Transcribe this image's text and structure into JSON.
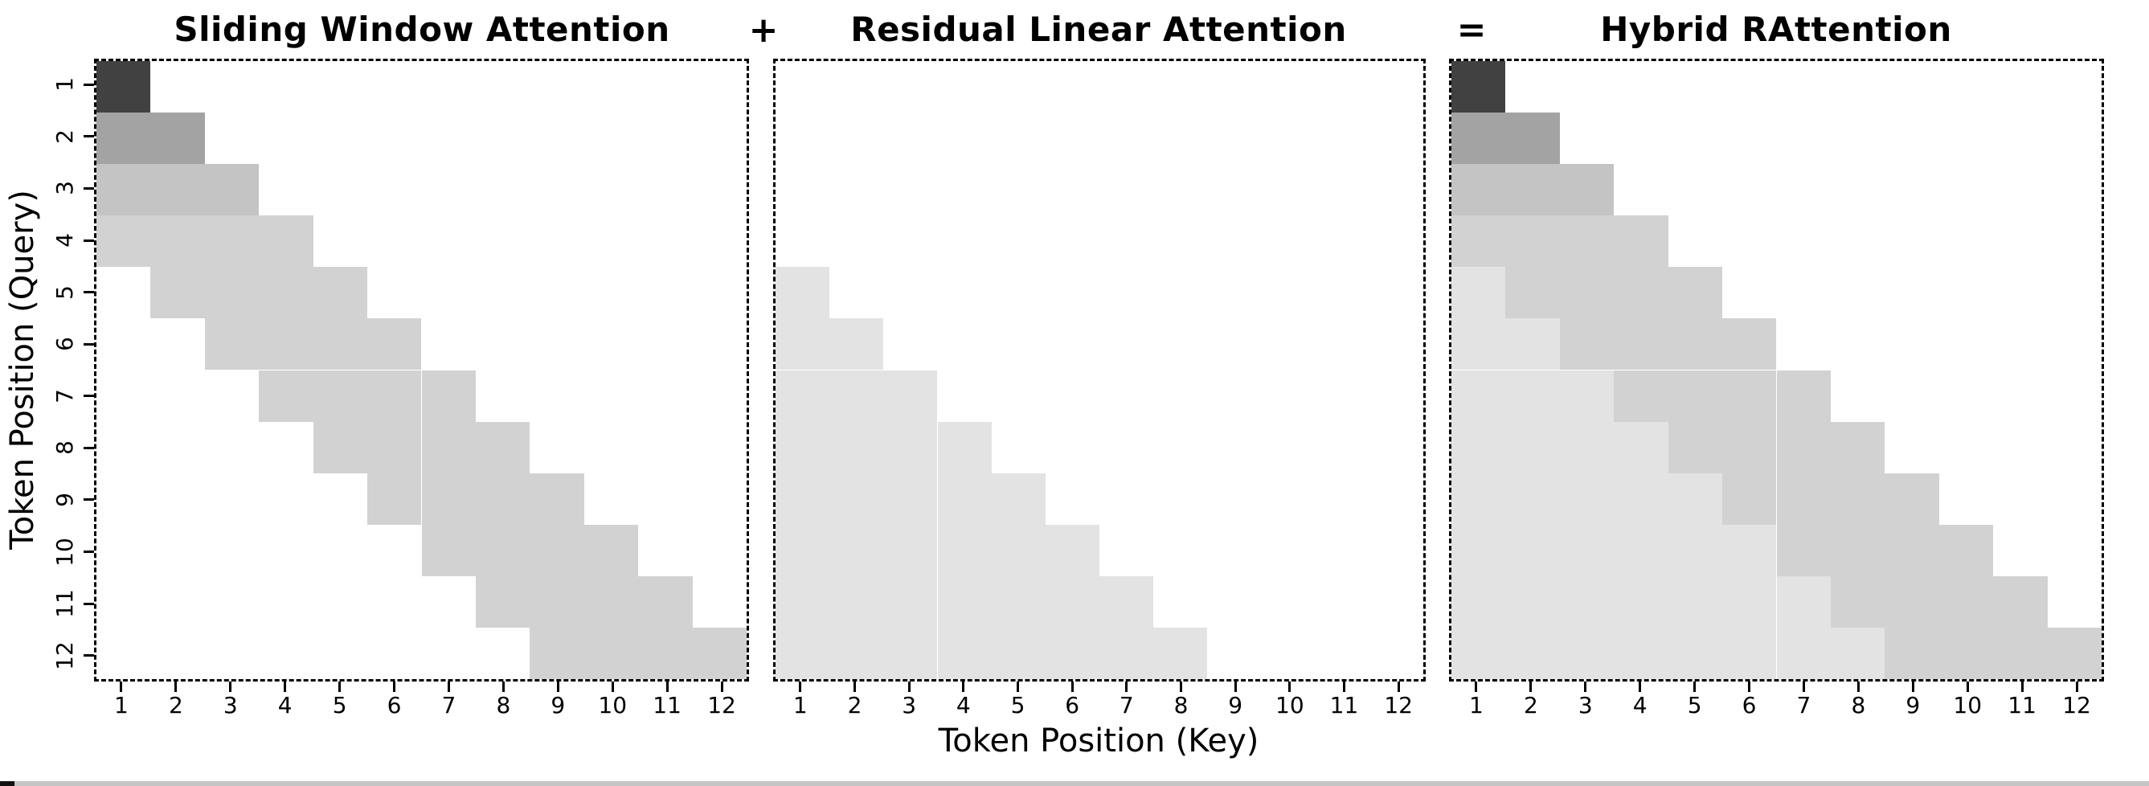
{
  "figure": {
    "titles": [
      {
        "text": "Sliding Window Attention"
      },
      {
        "text": "+"
      },
      {
        "text": "Residual Linear Attention"
      },
      {
        "text": "="
      },
      {
        "text": "Hybrid RAttention"
      }
    ],
    "xlabel": "Token Position (Key)",
    "ylabel": "Token Position (Query)"
  },
  "chart_data": {
    "type": "heatmap",
    "subplot_count": 3,
    "x_ticks": [
      1,
      2,
      3,
      4,
      5,
      6,
      7,
      8,
      9,
      10,
      11,
      12
    ],
    "y_ticks": [
      1,
      2,
      3,
      4,
      5,
      6,
      7,
      8,
      9,
      10,
      11,
      12
    ],
    "axis_style": "dashed black frame, ticks outside, y tick labels rotated 90",
    "palette": {
      "a": "#414141",
      "b": "#a3a3a3",
      "c": "#c4c4c4",
      "d": "#d2d2d2",
      "e": "#e3e3e3"
    },
    "palette_meaning": {
      "a": "attended cell, darkest (query 1, single key)",
      "b": "attended cell, dark-medium (query 2 rows)",
      "c": "attended cell, medium (query 3 rows)",
      "d": "attended cell, light (sliding-window band, window size 4)",
      "e": "attended cell, lightest (residual linear / prefix part)",
      ".": "not attended (white)"
    },
    "panels": [
      {
        "title": "Sliding Window Attention",
        "pattern": "causal sliding window, window size 4",
        "grid": [
          "a...........",
          "bb..........",
          "ccc.........",
          "dddd........",
          ".dddd.......",
          "..dddd......",
          "...dddd.....",
          "....dddd....",
          ".....dddd...",
          "......dddd..",
          ".......dddd.",
          "........dddd"
        ]
      },
      {
        "title": "Residual Linear Attention",
        "pattern": "keys before the sliding window (cols 1..row-4), rows 5-12",
        "grid": [
          "............",
          "............",
          "............",
          "............",
          "e...........",
          "ee..........",
          "eee.........",
          "eeee........",
          "eeeee.......",
          "eeeeee......",
          "eeeeeee.....",
          "eeeeeeee...."
        ]
      },
      {
        "title": "Hybrid RAttention",
        "pattern": "union: residual prefix (lightest) + sliding window band",
        "grid": [
          "a...........",
          "bb..........",
          "ccc.........",
          "dddd........",
          "edddd.......",
          "eedddd......",
          "eeedddd.....",
          "eeeedddd....",
          "eeeeedddd...",
          "eeeeeedddd..",
          "eeeeeeedddd.",
          "eeeeeeeedddd"
        ]
      }
    ]
  },
  "footer": {
    "strip_color": "#c5c5c5",
    "dark_segment_color": "#121212"
  }
}
